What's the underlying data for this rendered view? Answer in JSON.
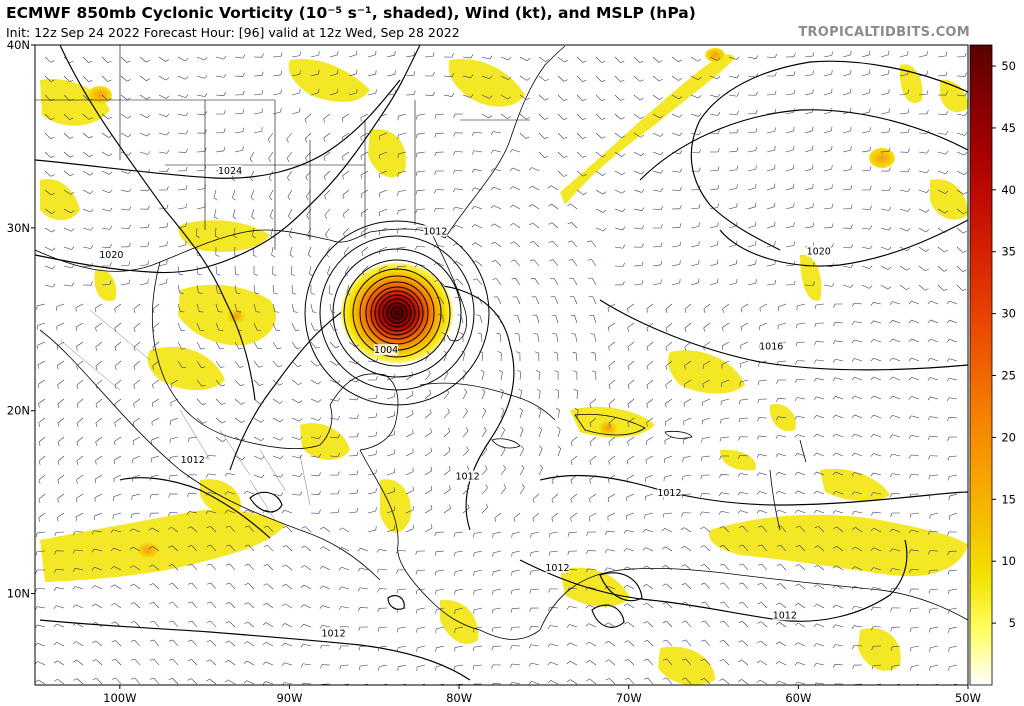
{
  "header": {
    "title": "ECMWF 850mb Cyclonic Vorticity (10⁻⁵ s⁻¹, shaded), Wind (kt), and MSLP (hPa)",
    "subtitle": "Init: 12z Sep 24 2022   Forecast Hour: [96]   valid at 12z Wed, Sep 28 2022",
    "brand": "TROPICALTIDBITS.COM"
  },
  "map": {
    "extent": {
      "lon_min": -105,
      "lon_max": -50,
      "lat_min": 5,
      "lat_max": 40
    },
    "lat_ticks": [
      {
        "value": 40,
        "label": "40N"
      },
      {
        "value": 30,
        "label": "30N"
      },
      {
        "value": 20,
        "label": "20N"
      },
      {
        "value": 10,
        "label": "10N"
      }
    ],
    "lon_ticks": [
      {
        "value": -100,
        "label": "100W"
      },
      {
        "value": -90,
        "label": "90W"
      },
      {
        "value": -80,
        "label": "80W"
      },
      {
        "value": -70,
        "label": "70W"
      },
      {
        "value": -60,
        "label": "60W"
      },
      {
        "value": -50,
        "label": "50W"
      }
    ],
    "cyclone_center": {
      "lon": -84,
      "lat": 25.2
    },
    "isobar_labels": [
      {
        "text": "1024",
        "lon": -93.5,
        "lat": 33
      },
      {
        "text": "1020",
        "lon": -100.5,
        "lat": 28.4
      },
      {
        "text": "1012",
        "lon": -81.4,
        "lat": 29.7
      },
      {
        "text": "1004",
        "lon": -84.3,
        "lat": 23.2
      },
      {
        "text": "1020",
        "lon": -58.8,
        "lat": 28.6
      },
      {
        "text": "1016",
        "lon": -61.6,
        "lat": 23.4
      },
      {
        "text": "1012",
        "lon": -95.7,
        "lat": 17.2
      },
      {
        "text": "1012",
        "lon": -79.5,
        "lat": 16.3
      },
      {
        "text": "1012",
        "lon": -67.6,
        "lat": 15.4
      },
      {
        "text": "1012",
        "lon": -74.2,
        "lat": 11.3
      },
      {
        "text": "1012",
        "lon": -60.8,
        "lat": 8.7
      },
      {
        "text": "1012",
        "lon": -87.4,
        "lat": 7.7
      }
    ]
  },
  "colorbar": {
    "ticks": [
      "5",
      "10",
      "15",
      "20",
      "25",
      "30",
      "35",
      "40",
      "45",
      "50"
    ],
    "colors": [
      "#ffffff",
      "#ffff66",
      "#f2e300",
      "#f5c000",
      "#f7a000",
      "#f58200",
      "#ef6000",
      "#e64000",
      "#d62400",
      "#c20e00",
      "#a50000",
      "#820000",
      "#5a0000"
    ]
  }
}
